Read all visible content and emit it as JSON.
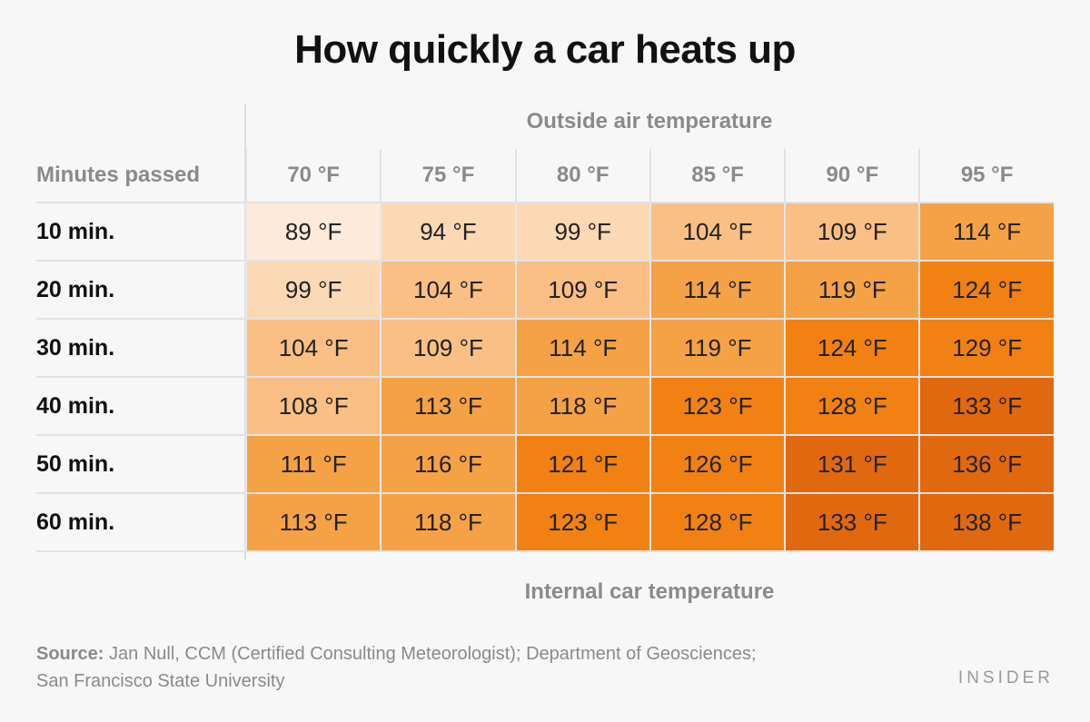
{
  "chart_data": {
    "type": "heatmap",
    "title": "How quickly a car heats up",
    "column_header": "Outside air temperature",
    "row_header": "Minutes passed",
    "value_label": "Internal car temperature",
    "columns": [
      "70 °F",
      "75 °F",
      "80 °F",
      "85 °F",
      "90 °F",
      "95 °F"
    ],
    "rows": [
      "10 min.",
      "20 min.",
      "30 min.",
      "40 min.",
      "50 min.",
      "60 min."
    ],
    "unit": "°F",
    "values": [
      [
        89,
        94,
        99,
        104,
        109,
        114
      ],
      [
        99,
        104,
        109,
        114,
        119,
        124
      ],
      [
        104,
        109,
        114,
        119,
        124,
        129
      ],
      [
        108,
        113,
        118,
        123,
        128,
        133
      ],
      [
        111,
        116,
        121,
        126,
        131,
        136
      ],
      [
        113,
        118,
        123,
        128,
        133,
        138
      ]
    ],
    "color_scale": [
      {
        "min": 0,
        "color": "#fdeadb"
      },
      {
        "min": 90,
        "color": "#fcd9b5"
      },
      {
        "min": 100,
        "color": "#f9bf84"
      },
      {
        "min": 110,
        "color": "#f5a146"
      },
      {
        "min": 120,
        "color": "#f08112"
      },
      {
        "min": 130,
        "color": "#e0680f"
      }
    ]
  },
  "source": {
    "label": "Source:",
    "line1": " Jan Null, CCM (Certified Consulting Meteorologist); Department of Geosciences;",
    "line2": "San Francisco State University"
  },
  "logo": "INSIDER"
}
